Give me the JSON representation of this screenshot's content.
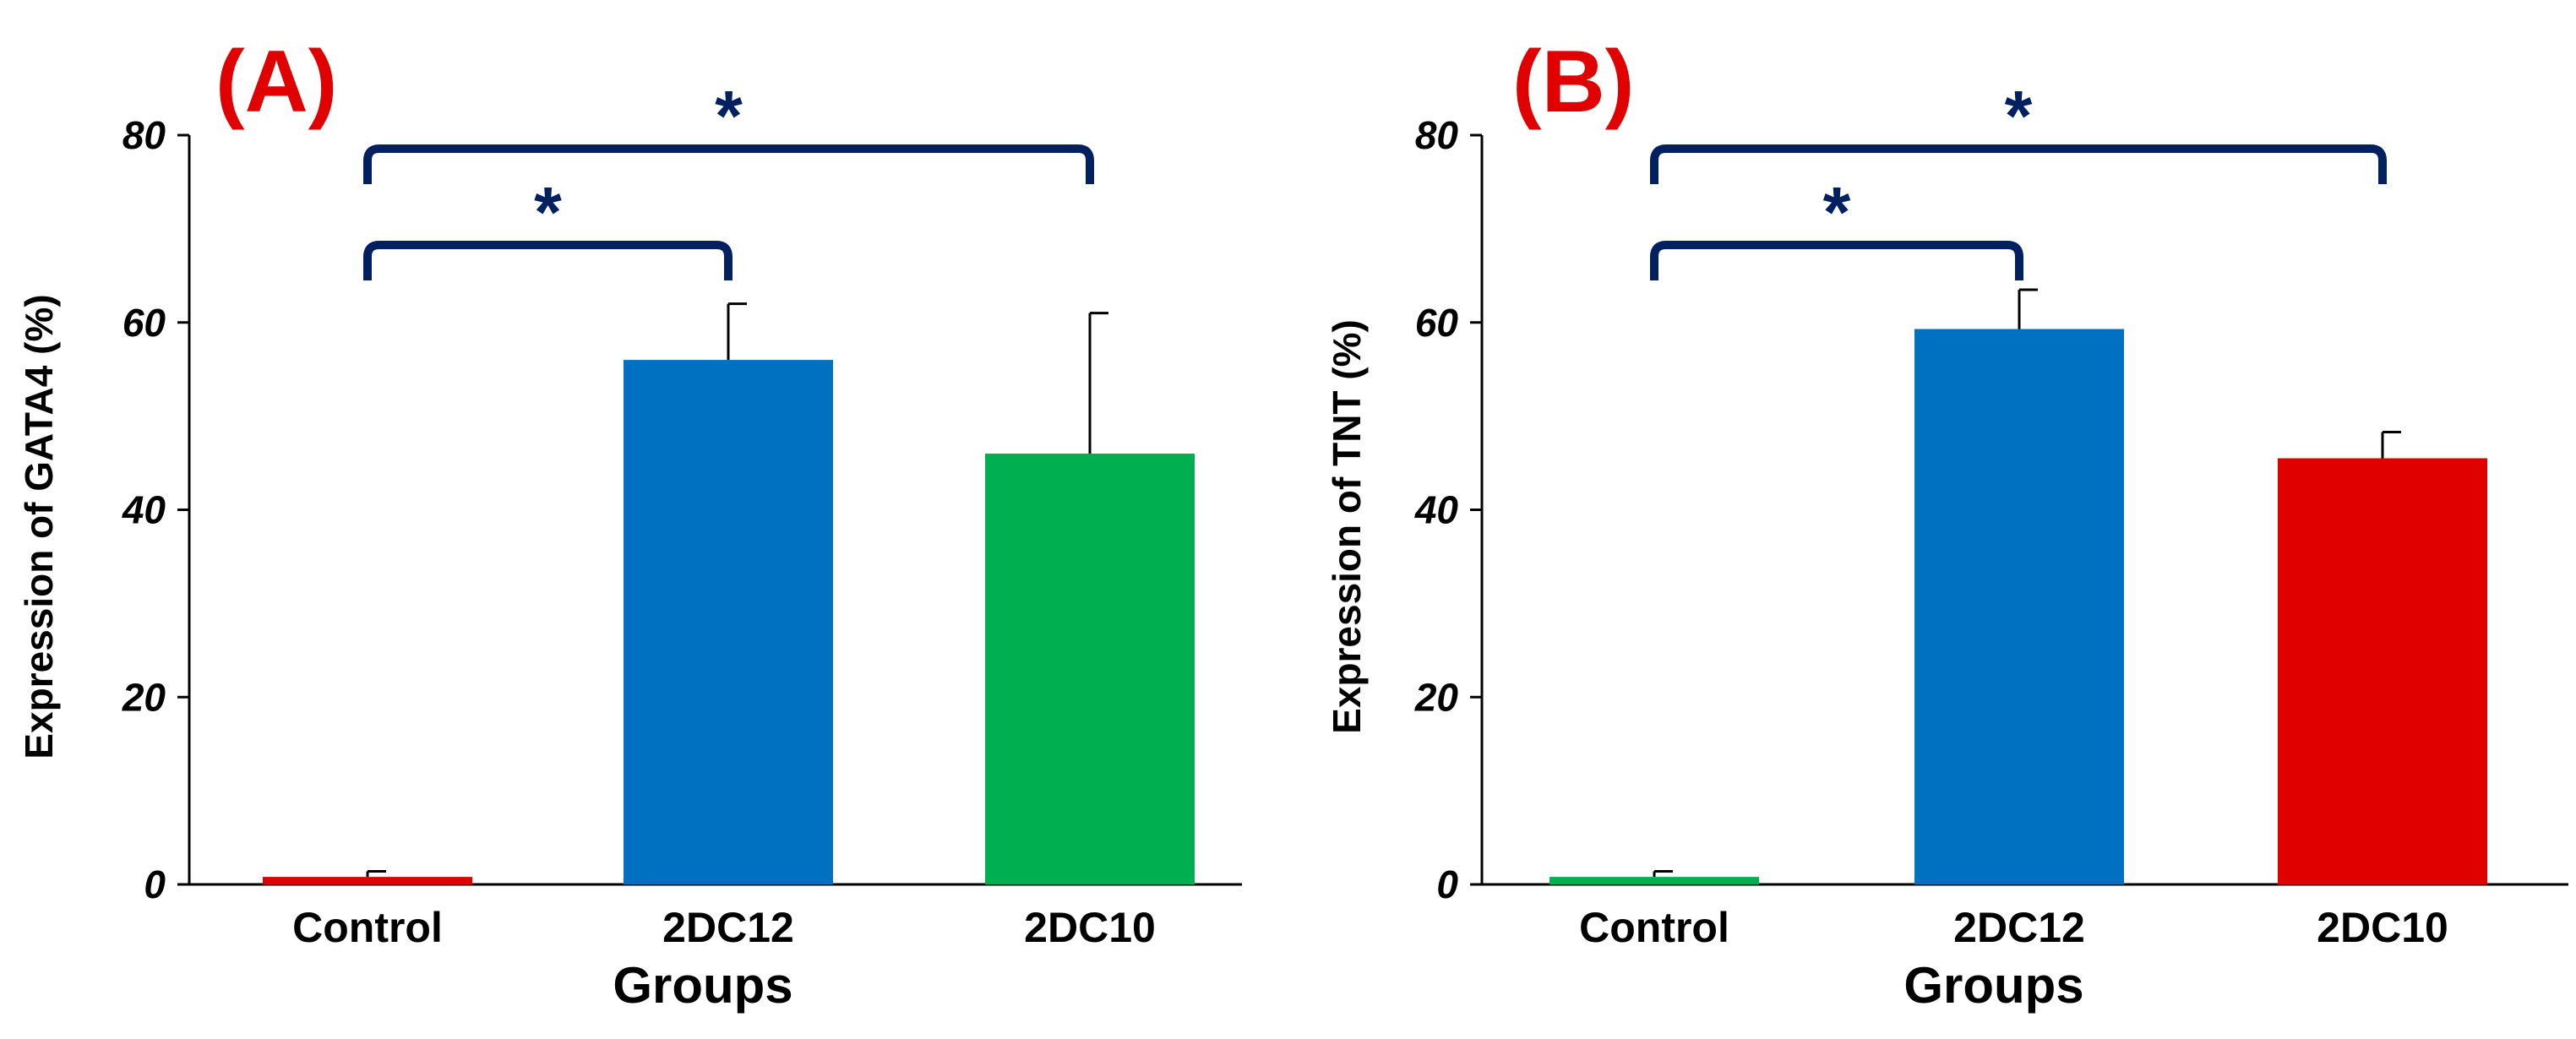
{
  "chart_data": [
    {
      "type": "bar",
      "panel_label": "(A)",
      "title": "",
      "xlabel": "Groups",
      "ylabel": "Expression of GATA4 (%)",
      "ylim": [
        0,
        80
      ],
      "yticks": [
        0,
        20,
        40,
        60,
        80
      ],
      "categories": [
        "Control",
        "2DC12",
        "2DC10"
      ],
      "values": [
        0.8,
        56,
        46
      ],
      "errors": [
        0.6,
        6,
        15
      ],
      "colors": [
        "#e00000",
        "#0070c0",
        "#00b050"
      ],
      "significance": [
        {
          "from": 0,
          "to": 1,
          "label": "*"
        },
        {
          "from": 0,
          "to": 2,
          "label": "*"
        }
      ],
      "grid": false,
      "legend": "none"
    },
    {
      "type": "bar",
      "panel_label": "(B)",
      "title": "",
      "xlabel": "Groups",
      "ylabel": "Expression of TNT (%)",
      "ylim": [
        0,
        80
      ],
      "yticks": [
        0,
        20,
        40,
        60,
        80
      ],
      "categories": [
        "Control",
        "2DC12",
        "2DC10"
      ],
      "values": [
        0.8,
        59.3,
        45.5
      ],
      "errors": [
        0.6,
        4.2,
        2.8
      ],
      "colors": [
        "#00b050",
        "#0070c0",
        "#e00000"
      ],
      "significance": [
        {
          "from": 0,
          "to": 1,
          "label": "*"
        },
        {
          "from": 0,
          "to": 2,
          "label": "*"
        }
      ],
      "grid": false,
      "legend": "none"
    }
  ],
  "bracket_color": "#002060"
}
